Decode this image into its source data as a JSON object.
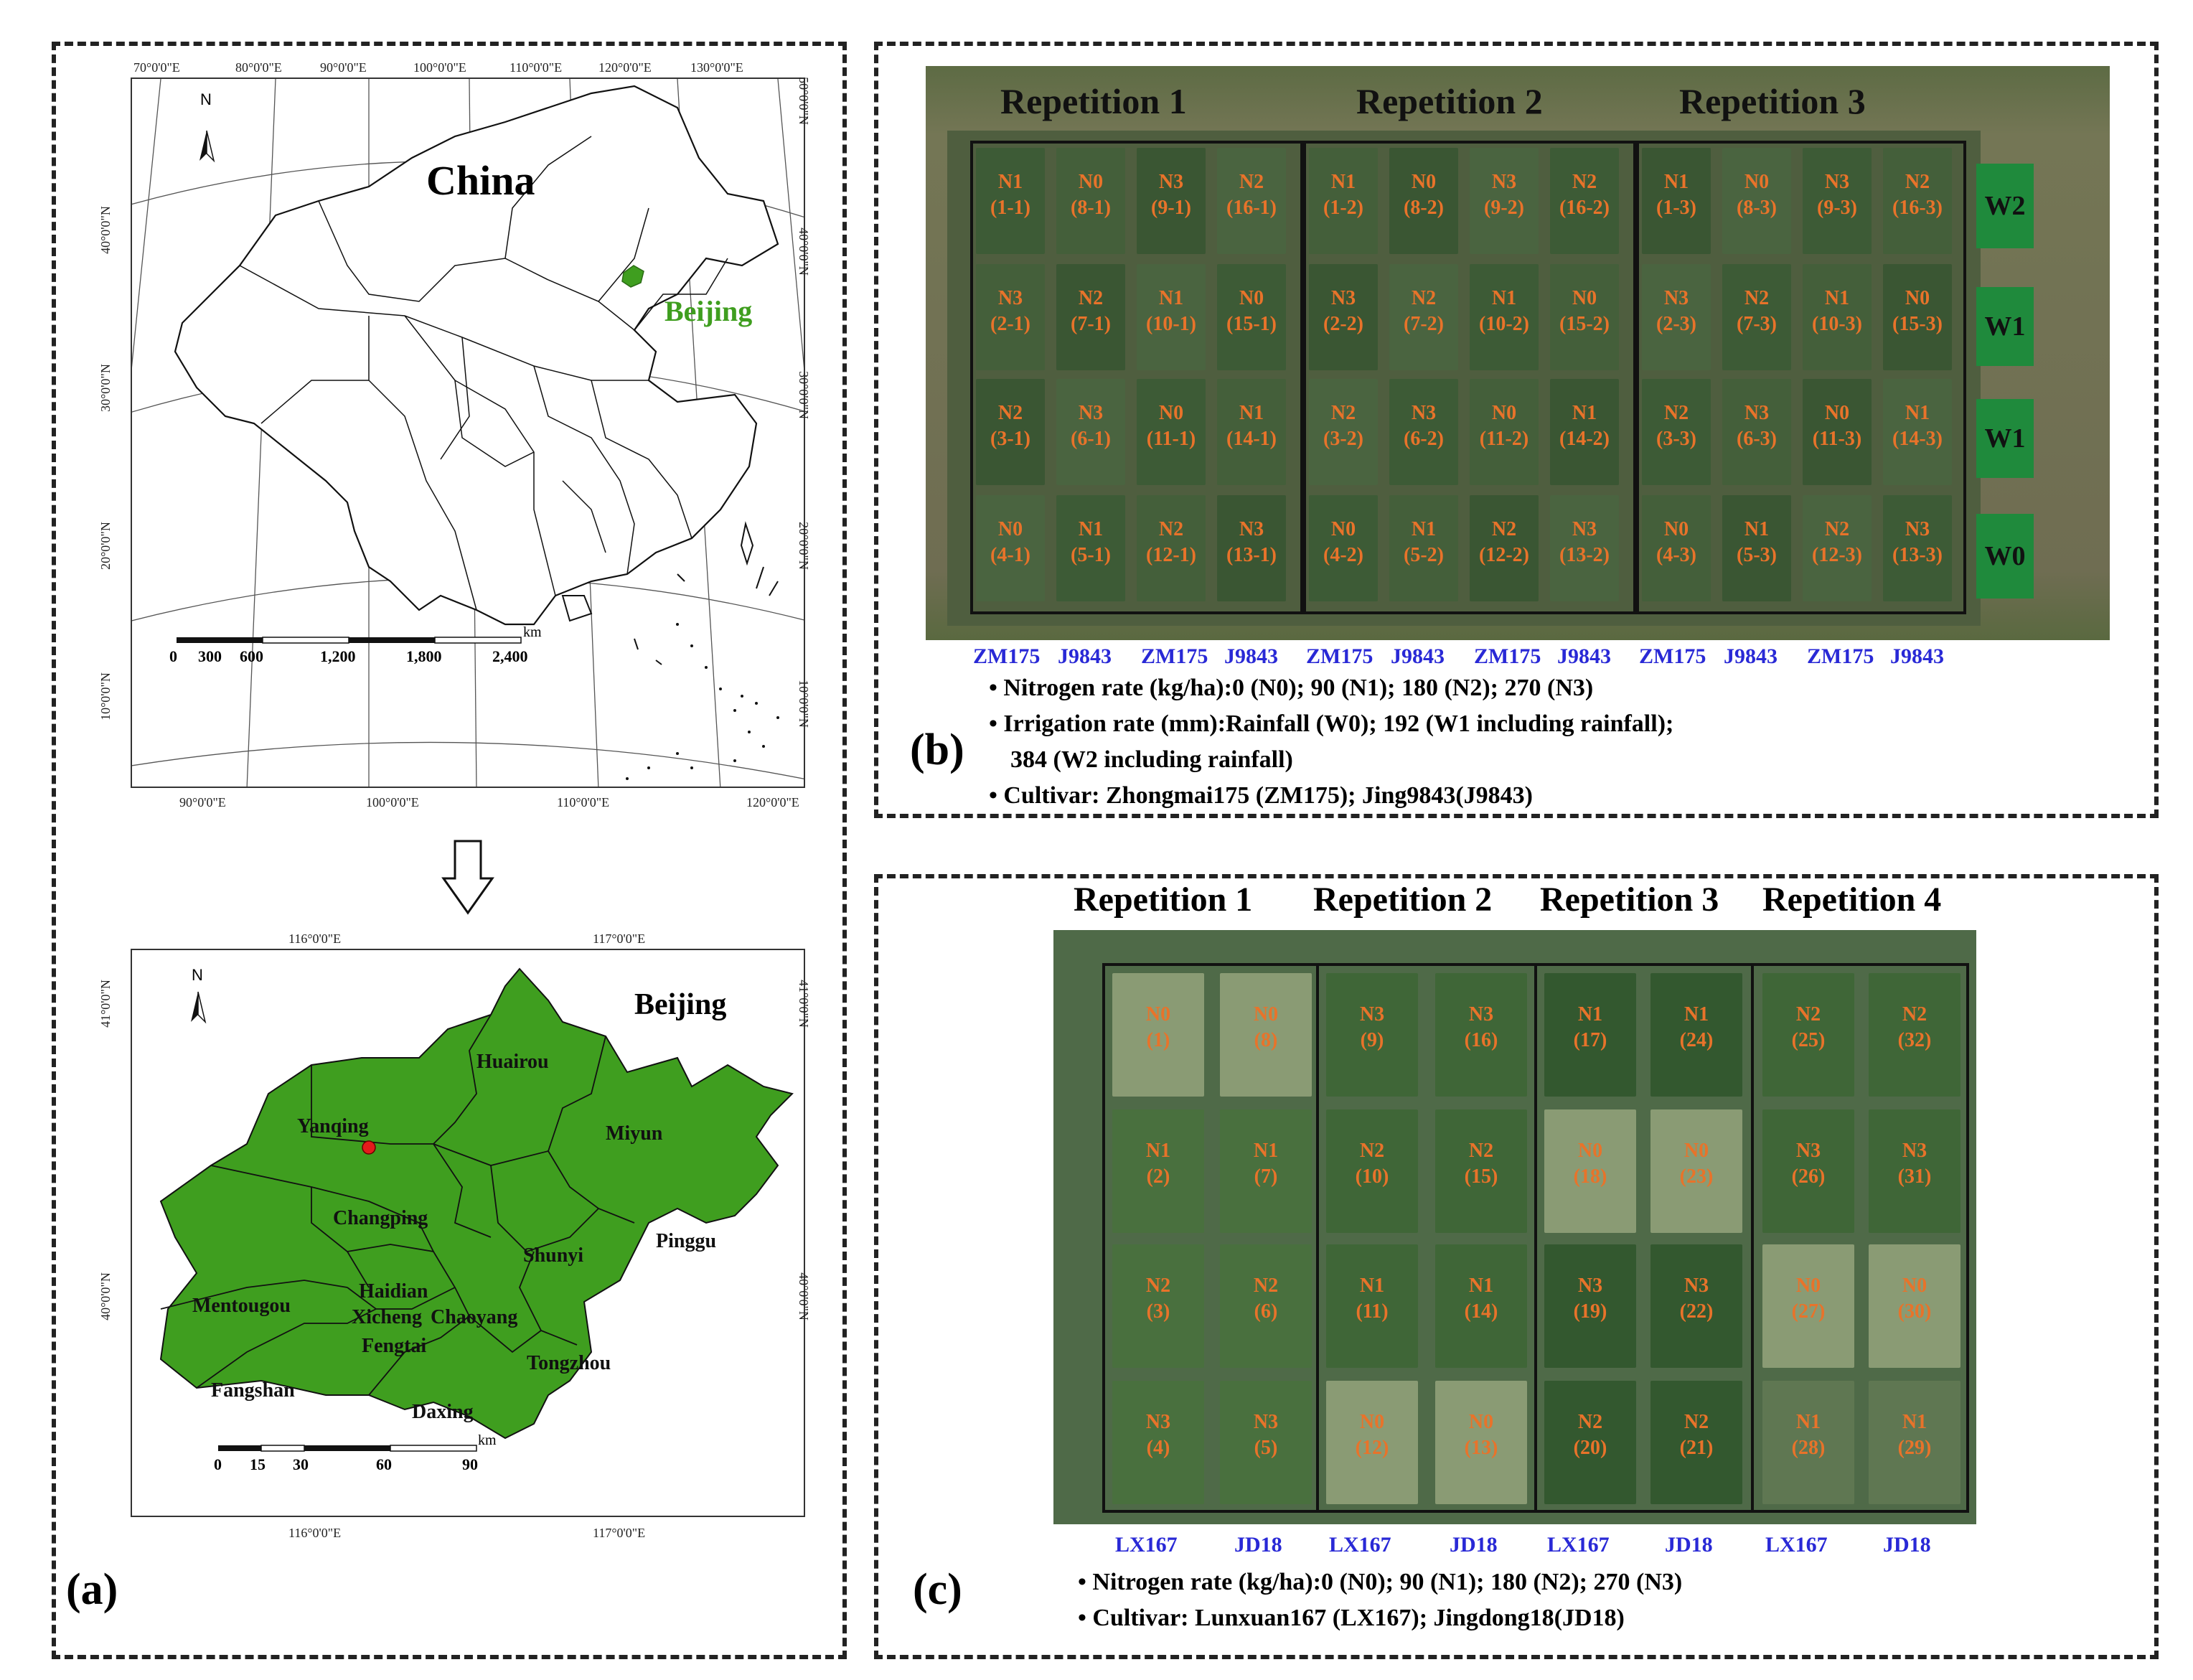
{
  "panel_a": {
    "tag": "(a)",
    "china_map": {
      "title": "China",
      "city_label": "Beijing",
      "north": "N",
      "top_lon": [
        "70°0'0\"E",
        "80°0'0\"E",
        "90°0'0\"E",
        "100°0'0\"E",
        "110°0'0\"E",
        "120°0'0\"E",
        "130°0'0\"E"
      ],
      "bottom_lon": [
        "90°0'0\"E",
        "100°0'0\"E",
        "110°0'0\"E",
        "120°0'0\"E"
      ],
      "left_lat": [
        "40°0'0\"N",
        "30°0'0\"N",
        "20°0'0\"N",
        "10°0'0\"N"
      ],
      "right_lat": [
        "50°0'0\"N",
        "40°0'0\"N",
        "30°0'0\"N",
        "20°0'0\"N",
        "10°0'0\"N"
      ],
      "scale_ticks": [
        "0",
        "300",
        "600",
        "1,200",
        "1,800",
        "2,400"
      ],
      "scale_unit": "km"
    },
    "beijing_map": {
      "title": "Beijing",
      "north": "N",
      "top_lon": [
        "116°0'0\"E",
        "117°0'0\"E"
      ],
      "bottom_lon": [
        "116°0'0\"E",
        "117°0'0\"E"
      ],
      "left_lat": [
        "41°0'0\"N",
        "40°0'0\"N"
      ],
      "right_lat": [
        "41°0'0\"N",
        "40°0'0\"N"
      ],
      "scale_ticks": [
        "0",
        "15",
        "30",
        "60",
        "90"
      ],
      "scale_unit": "km",
      "districts": [
        "Huairou",
        "Yanqing",
        "Miyun",
        "Changping",
        "Shunyi",
        "Pinggu",
        "Haidian",
        "Mentougou",
        "Xicheng",
        "Chaoyang",
        "Fengtai",
        "Tongzhou",
        "Fangshan",
        "Daxing"
      ]
    }
  },
  "panel_b": {
    "tag": "(b)",
    "repetitions": [
      "Repetition 1",
      "Repetition 2",
      "Repetition 3"
    ],
    "rows": [
      {
        "n": [
          "N1",
          "N0",
          "N3",
          "N2"
        ],
        "plots": [
          "1",
          "8",
          "9",
          "16"
        ],
        "water": "W2"
      },
      {
        "n": [
          "N3",
          "N2",
          "N1",
          "N0"
        ],
        "plots": [
          "2",
          "7",
          "10",
          "15"
        ],
        "water": "W1"
      },
      {
        "n": [
          "N2",
          "N3",
          "N0",
          "N1"
        ],
        "plots": [
          "3",
          "6",
          "11",
          "14"
        ],
        "water": "W1"
      },
      {
        "n": [
          "N0",
          "N1",
          "N2",
          "N3"
        ],
        "plots": [
          "4",
          "5",
          "12",
          "13"
        ],
        "water": "W0"
      }
    ],
    "cultivars": [
      "ZM175",
      "J9843",
      "ZM175",
      "J9843"
    ],
    "legend": [
      "Nitrogen rate (kg/ha):0 (N0); 90 (N1); 180 (N2); 270 (N3)",
      "Irrigation rate (mm):Rainfall (W0); 192 (W1 including rainfall);",
      "384 (W2 including rainfall)",
      "Cultivar: Zhongmai175 (ZM175); Jing9843(J9843)"
    ]
  },
  "panel_c": {
    "tag": "(c)",
    "repetitions": [
      "Repetition 1",
      "Repetition 2",
      "Repetition 3",
      "Repetition 4"
    ],
    "columns": [
      {
        "n": [
          "N0",
          "N1",
          "N2",
          "N3"
        ],
        "plots": [
          "(1)",
          "(2)",
          "(3)",
          "(4)"
        ]
      },
      {
        "n": [
          "N0",
          "N1",
          "N2",
          "N3"
        ],
        "plots": [
          "(8)",
          "(7)",
          "(6)",
          "(5)"
        ]
      },
      {
        "n": [
          "N3",
          "N2",
          "N1",
          "N0"
        ],
        "plots": [
          "(9)",
          "(10)",
          "(11)",
          "(12)"
        ]
      },
      {
        "n": [
          "N3",
          "N2",
          "N1",
          "N0"
        ],
        "plots": [
          "(16)",
          "(15)",
          "(14)",
          "(13)"
        ]
      },
      {
        "n": [
          "N1",
          "N0",
          "N3",
          "N2"
        ],
        "plots": [
          "(17)",
          "(18)",
          "(19)",
          "(20)"
        ]
      },
      {
        "n": [
          "N1",
          "N0",
          "N3",
          "N2"
        ],
        "plots": [
          "(24)",
          "(23)",
          "(22)",
          "(21)"
        ]
      },
      {
        "n": [
          "N2",
          "N3",
          "N0",
          "N1"
        ],
        "plots": [
          "(25)",
          "(26)",
          "(27)",
          "(28)"
        ]
      },
      {
        "n": [
          "N2",
          "N3",
          "N0",
          "N1"
        ],
        "plots": [
          "(32)",
          "(31)",
          "(30)",
          "(29)"
        ]
      }
    ],
    "cultivars": [
      "LX167",
      "JD18",
      "LX167",
      "JD18",
      "LX167",
      "JD18",
      "LX167",
      "JD18"
    ],
    "legend": [
      "Nitrogen rate (kg/ha):0 (N0); 90 (N1); 180 (N2); 270 (N3)",
      "Cultivar: Lunxuan167 (LX167); Jingdong18(JD18)"
    ]
  },
  "colors": {
    "plot_label": "#e8732a",
    "cultivar_label": "#2929d6",
    "beijing_fill": "#3f9e1f",
    "water_box": "#1f8a3c"
  }
}
